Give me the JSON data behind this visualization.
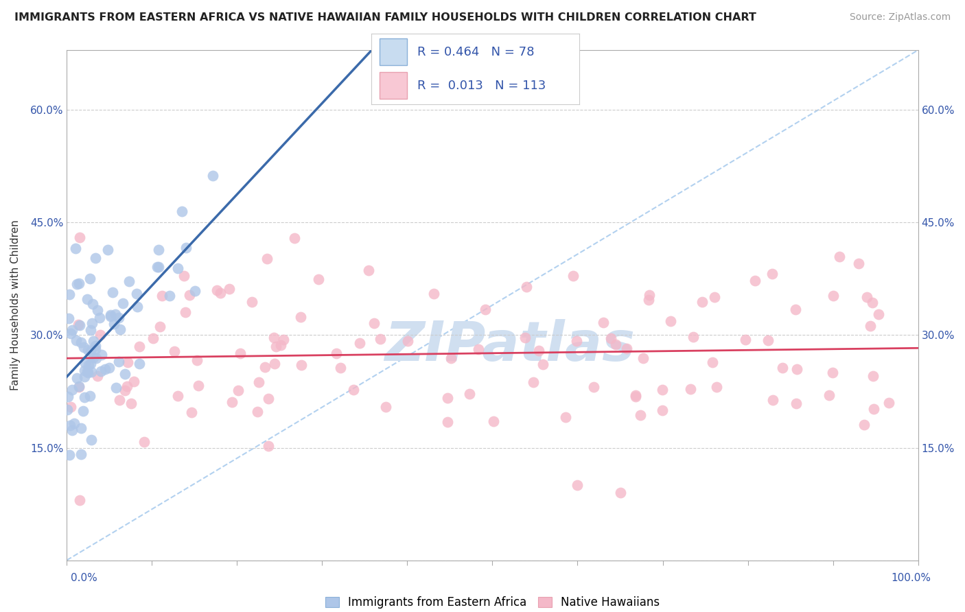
{
  "title": "IMMIGRANTS FROM EASTERN AFRICA VS NATIVE HAWAIIAN FAMILY HOUSEHOLDS WITH CHILDREN CORRELATION CHART",
  "source": "Source: ZipAtlas.com",
  "ylabel": "Family Households with Children",
  "blue_R": 0.464,
  "blue_N": 78,
  "pink_R": 0.013,
  "pink_N": 113,
  "blue_color": "#aec6e8",
  "pink_color": "#f4b8c8",
  "blue_line_color": "#3b6aaa",
  "pink_line_color": "#d94060",
  "dashed_line_color": "#aaccee",
  "legend_box_blue_fill": "#c8dcf0",
  "legend_box_pink_fill": "#f8c8d4",
  "legend_text_color": "#3355aa",
  "watermark_color": "#d0dff0",
  "background_color": "#ffffff",
  "xlim": [
    0.0,
    1.0
  ],
  "ylim": [
    0.0,
    0.68
  ],
  "yticks": [
    0.0,
    0.15,
    0.3,
    0.45,
    0.6
  ],
  "ytick_labels": [
    "",
    "15.0%",
    "30.0%",
    "45.0%",
    "60.0%"
  ],
  "right_ytick_labels": [
    "",
    "15.0%",
    "30.0%",
    "45.0%",
    "60.0%"
  ],
  "xtick_labels": [
    "",
    "",
    "",
    "",
    "",
    "",
    "",
    "",
    "",
    "",
    ""
  ],
  "grid_color": "#cccccc",
  "spine_color": "#aaaaaa",
  "title_fontsize": 11.5,
  "source_fontsize": 10,
  "axis_label_fontsize": 11,
  "tick_fontsize": 11,
  "legend_fontsize": 13
}
